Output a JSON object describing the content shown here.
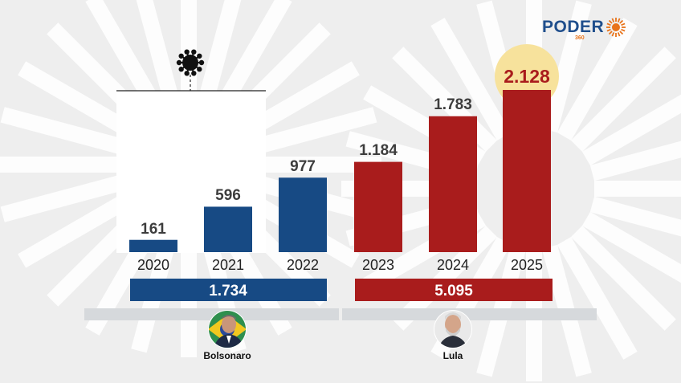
{
  "brand": {
    "name": "PODER",
    "sub": "360"
  },
  "colors": {
    "bolsonaro": "#174a84",
    "lula": "#a91c1c",
    "highlight": "#f7e29c",
    "label": "#3d3d3d",
    "bar_bg": "#d6d9dc"
  },
  "icons": {
    "pandemic": "virus-icon"
  },
  "chart_data": {
    "type": "bar",
    "title": "",
    "xlabel": "",
    "ylabel": "",
    "categories": [
      "2020",
      "2021",
      "2022",
      "2023",
      "2024",
      "2025"
    ],
    "values": [
      161,
      596,
      977,
      1184,
      1783,
      2128
    ],
    "value_labels": [
      "161",
      "596",
      "977",
      "1.184",
      "1.783",
      "2.128"
    ],
    "bar_owner": [
      "bolsonaro",
      "bolsonaro",
      "bolsonaro",
      "lula",
      "lula",
      "lula"
    ],
    "highlight_index": 5,
    "ylim": [
      0,
      2128
    ],
    "grid": false,
    "totals": [
      {
        "name": "Bolsonaro",
        "years": "2020-2022",
        "value": 1734,
        "label": "1.734"
      },
      {
        "name": "Lula",
        "years": "2023-2025",
        "value": 5095,
        "label": "5.095"
      }
    ]
  },
  "presidents": [
    {
      "name": "Bolsonaro"
    },
    {
      "name": "Lula"
    }
  ]
}
